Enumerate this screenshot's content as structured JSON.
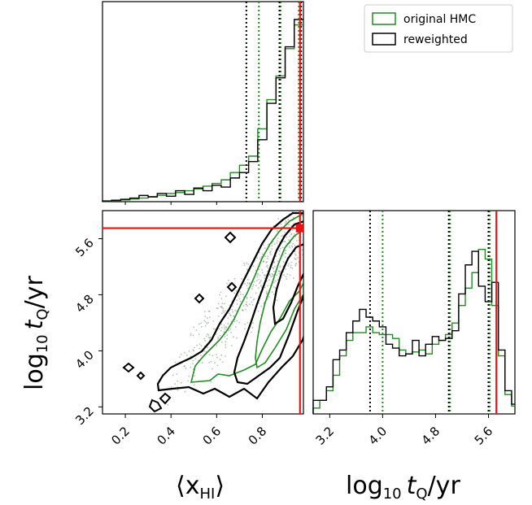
{
  "chart_data": {
    "type": "corner",
    "colors": {
      "original": "#228b22",
      "reweighted": "#000000",
      "truth": "#ee1111",
      "scatter": "#6f8f6f"
    },
    "legend": {
      "placement": "top-right",
      "entries": [
        {
          "label": "original HMC",
          "color": "#228b22"
        },
        {
          "label": "reweighted",
          "color": "#000000"
        }
      ]
    },
    "axis_labels": {
      "x_left_main": "⟨x",
      "x_left_sub": "HI",
      "x_left_close": "⟩",
      "x_right_main": "log",
      "x_right_sub": "10",
      "x_right_var": "t",
      "x_right_var_sub": "Q",
      "x_right_tail": "/yr",
      "y_main": "log",
      "y_sub": "10",
      "y_var": "t",
      "y_var_sub": "Q",
      "y_tail": "/yr"
    },
    "panels": [
      {
        "name": "xhi-marginal",
        "type": "histogram",
        "xlim": [
          0.1,
          0.98
        ],
        "bins": [
          0.1,
          0.14,
          0.18,
          0.22,
          0.26,
          0.3,
          0.34,
          0.38,
          0.42,
          0.46,
          0.5,
          0.54,
          0.58,
          0.62,
          0.66,
          0.7,
          0.74,
          0.78,
          0.82,
          0.86,
          0.9,
          0.94,
          0.98
        ],
        "series": [
          {
            "name": "original HMC",
            "values": [
              0.002,
              0.006,
              0.01,
              0.015,
              0.02,
              0.028,
              0.035,
              0.045,
              0.05,
              0.06,
              0.07,
              0.085,
              0.1,
              0.12,
              0.16,
              0.2,
              0.25,
              0.4,
              0.56,
              0.69,
              0.84,
              0.97
            ]
          },
          {
            "name": "reweighted",
            "values": [
              0.004,
              0.008,
              0.013,
              0.02,
              0.034,
              0.026,
              0.045,
              0.03,
              0.06,
              0.04,
              0.075,
              0.06,
              0.09,
              0.08,
              0.13,
              0.16,
              0.22,
              0.34,
              0.54,
              0.68,
              0.85,
              1.0
            ]
          }
        ],
        "quantile_lines": {
          "original HMC": [
            0.785,
            0.88,
            0.96
          ],
          "reweighted": [
            0.73,
            0.875,
            0.97
          ]
        },
        "truth": 0.965
      },
      {
        "name": "joint-density",
        "type": "contour",
        "xlim": [
          0.1,
          0.98
        ],
        "ylim": [
          3.1,
          6.0
        ],
        "xticks": [
          "0.2",
          "0.4",
          "0.6",
          "0.8"
        ],
        "xtick_values": [
          0.2,
          0.4,
          0.6,
          0.8
        ],
        "yticks": [
          "3.2",
          "4.0",
          "4.8",
          "5.6"
        ],
        "ytick_values": [
          3.2,
          4.0,
          4.8,
          5.6
        ],
        "truth": {
          "x": 0.965,
          "y": 5.75
        }
      },
      {
        "name": "tq-marginal",
        "type": "histogram",
        "xlim": [
          2.95,
          6.0
        ],
        "xticks": [
          "3.2",
          "4.0",
          "4.8",
          "5.6"
        ],
        "xtick_values": [
          3.2,
          4.0,
          4.8,
          5.6
        ],
        "bins": [
          2.95,
          3.05,
          3.15,
          3.25,
          3.35,
          3.45,
          3.55,
          3.65,
          3.75,
          3.85,
          3.95,
          4.05,
          4.15,
          4.25,
          4.35,
          4.45,
          4.55,
          4.65,
          4.75,
          4.85,
          4.95,
          5.05,
          5.15,
          5.25,
          5.35,
          5.45,
          5.55,
          5.65,
          5.75,
          5.85,
          5.95,
          6.05
        ],
        "series": [
          {
            "name": "original HMC",
            "values": [
              0.03,
              0.07,
              0.12,
              0.2,
              0.3,
              0.38,
              0.42,
              0.42,
              0.45,
              0.42,
              0.41,
              0.41,
              0.39,
              0.33,
              0.31,
              0.32,
              0.33,
              0.31,
              0.36,
              0.38,
              0.41,
              0.47,
              0.56,
              0.65,
              0.73,
              0.85,
              0.8,
              0.56,
              0.3,
              0.1,
              0.04
            ]
          },
          {
            "name": "reweighted",
            "values": [
              0.07,
              0.07,
              0.14,
              0.28,
              0.33,
              0.42,
              0.48,
              0.54,
              0.5,
              0.48,
              0.45,
              0.36,
              0.34,
              0.3,
              0.31,
              0.38,
              0.3,
              0.36,
              0.4,
              0.38,
              0.39,
              0.43,
              0.62,
              0.77,
              0.84,
              0.66,
              0.58,
              0.68,
              0.33,
              0.12,
              0.05
            ]
          }
        ],
        "quantile_lines": {
          "original HMC": [
            4.0,
            5.02,
            5.62
          ],
          "reweighted": [
            3.81,
            5.0,
            5.6
          ]
        },
        "truth": 5.72
      }
    ]
  }
}
